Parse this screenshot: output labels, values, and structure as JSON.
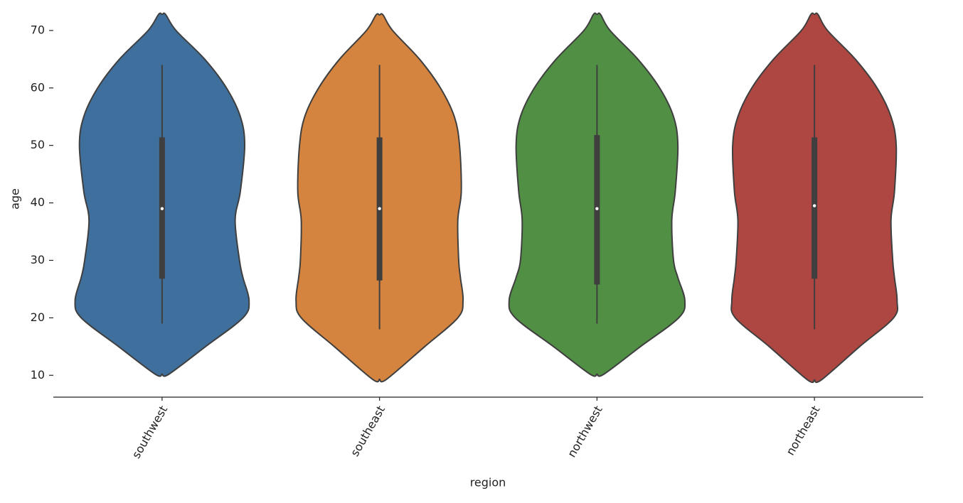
{
  "chart_data": {
    "type": "violin",
    "x_label": "region",
    "y_label": "age",
    "categories": [
      "southwest",
      "southeast",
      "northwest",
      "northeast"
    ],
    "ylim": [
      6.2,
      75.3
    ],
    "yticks": [
      10,
      20,
      30,
      40,
      50,
      60,
      70
    ],
    "series": [
      {
        "color": "#3f6f9c",
        "min": 19,
        "q1": 26.8,
        "median": 39,
        "q3": 51.4,
        "max": 64,
        "kde_age": [
          10.2,
          15,
          20,
          23,
          27,
          30,
          37,
          42,
          50,
          55,
          60,
          65,
          70,
          72.8
        ],
        "kde_width": [
          0.08,
          0.5,
          0.93,
          1.0,
          0.93,
          0.89,
          0.84,
          0.9,
          0.95,
          0.9,
          0.74,
          0.49,
          0.16,
          0.04
        ]
      },
      {
        "color": "#d4843e",
        "min": 18,
        "q1": 26.5,
        "median": 39,
        "q3": 51.4,
        "max": 64,
        "kde_age": [
          9.3,
          15,
          20,
          23,
          27,
          30,
          37,
          42,
          50,
          55,
          60,
          65,
          70,
          72.7
        ],
        "kde_width": [
          0.08,
          0.52,
          0.9,
          0.96,
          0.93,
          0.91,
          0.9,
          0.94,
          0.92,
          0.86,
          0.7,
          0.46,
          0.15,
          0.04
        ]
      },
      {
        "color": "#518f45",
        "min": 19,
        "q1": 25.8,
        "median": 39,
        "q3": 51.8,
        "max": 64,
        "kde_age": [
          10.2,
          15,
          20,
          23,
          27,
          30,
          37,
          42,
          50,
          55,
          60,
          65,
          70,
          72.8
        ],
        "kde_width": [
          0.08,
          0.5,
          0.94,
          1.01,
          0.93,
          0.88,
          0.86,
          0.9,
          0.93,
          0.88,
          0.72,
          0.47,
          0.15,
          0.04
        ]
      },
      {
        "color": "#ae4642",
        "min": 18,
        "q1": 26.8,
        "median": 39.5,
        "q3": 51.4,
        "max": 64,
        "kde_age": [
          9.2,
          15,
          20,
          23,
          27,
          30,
          37,
          42,
          50,
          55,
          60,
          65,
          70,
          72.8
        ],
        "kde_width": [
          0.08,
          0.52,
          0.91,
          0.95,
          0.92,
          0.9,
          0.88,
          0.92,
          0.94,
          0.88,
          0.72,
          0.47,
          0.15,
          0.04
        ]
      }
    ]
  }
}
